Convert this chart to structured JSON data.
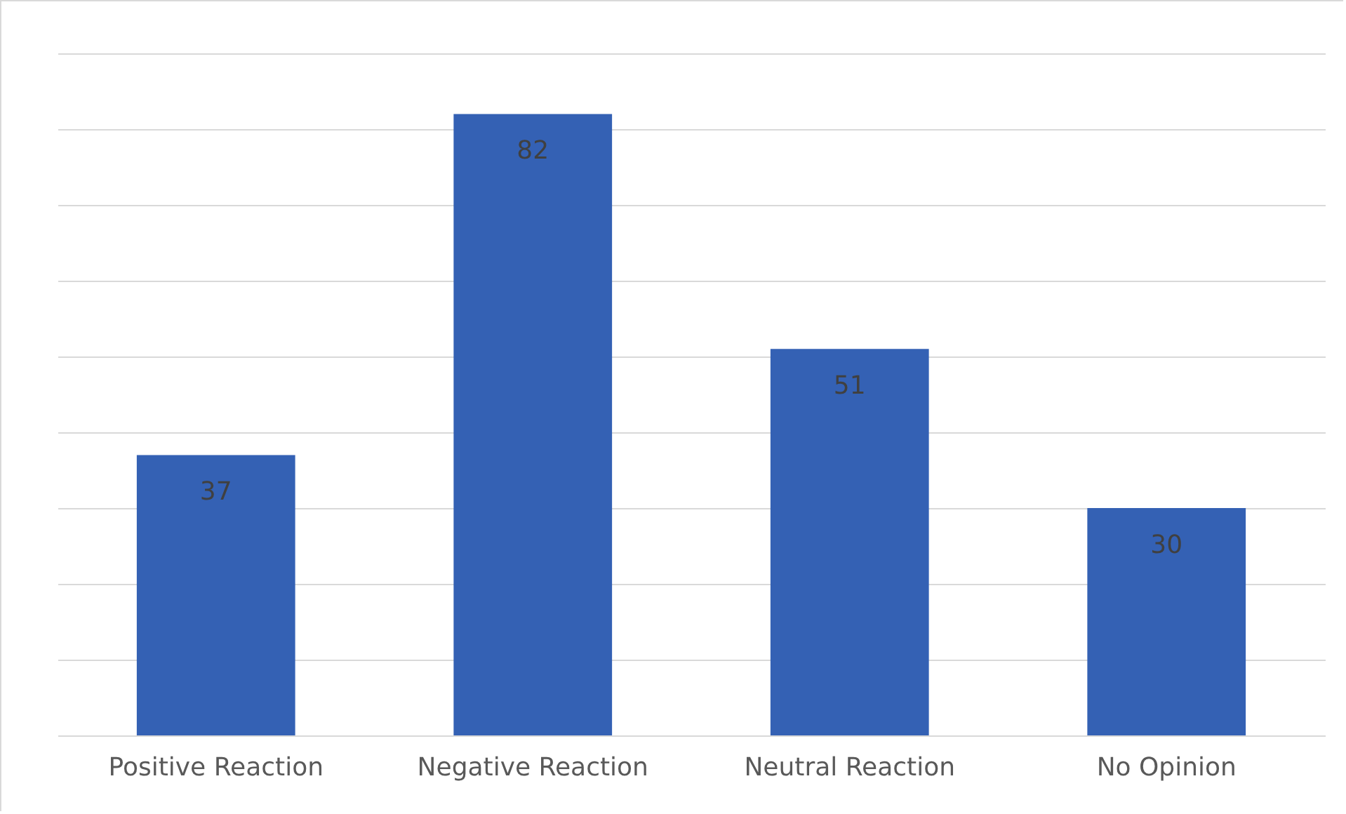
{
  "chart_data": {
    "type": "bar",
    "categories": [
      "Positive Reaction",
      "Negative Reaction",
      "Neutral Reaction",
      "No Opinion"
    ],
    "values": [
      37,
      82,
      51,
      30
    ],
    "color": "#3461b4",
    "data_labels": true,
    "ylim": [
      0,
      90
    ],
    "yticks": [
      0,
      10,
      20,
      30,
      40,
      50,
      60,
      70,
      80,
      90
    ],
    "grid": "y",
    "tick_labels": "x"
  }
}
